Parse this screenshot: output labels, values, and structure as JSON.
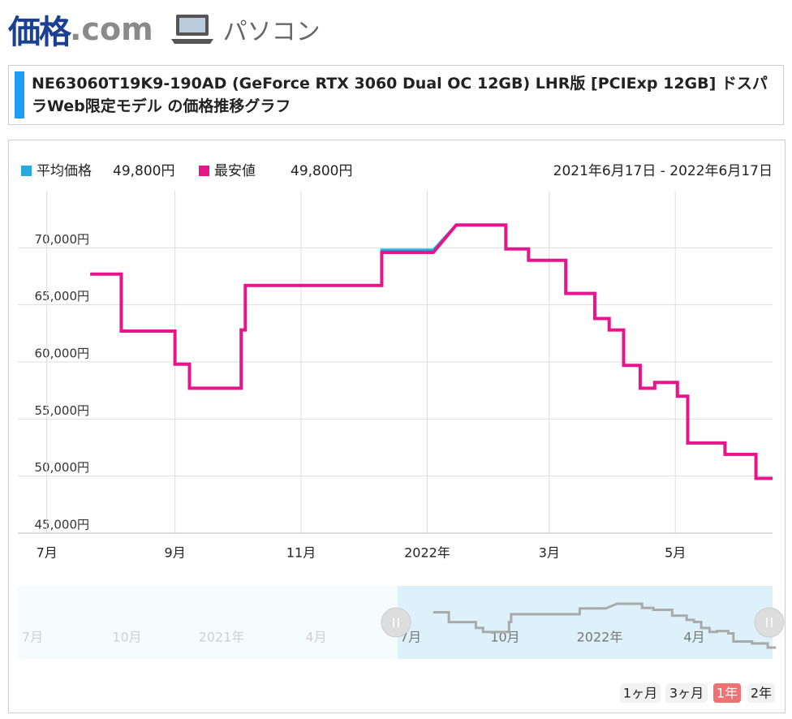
{
  "header": {
    "logo_main": "価格",
    "logo_domain": ".com",
    "section": "パソコン"
  },
  "title": "NE63060T19K9-190AD (GeForce RTX 3060 Dual OC 12GB) LHR版 [PCIExp 12GB] ドスパラWeb限定モデル の価格推移グラフ",
  "chart_data": {
    "type": "line",
    "date_range": "2021年6月17日 - 2022年6月17日",
    "x": [
      "2021-07-22",
      "2021-08-06",
      "2021-08-06",
      "2021-09-01",
      "2021-09-01",
      "2021-09-08",
      "2021-09-08",
      "2021-10-03",
      "2021-10-03",
      "2021-10-05",
      "2021-10-05",
      "2021-12-10",
      "2021-12-10",
      "2022-01-04",
      "2022-01-15",
      "2022-02-08",
      "2022-02-08",
      "2022-02-19",
      "2022-02-19",
      "2022-03-09",
      "2022-03-09",
      "2022-03-23",
      "2022-03-23",
      "2022-03-30",
      "2022-03-30",
      "2022-04-06",
      "2022-04-06",
      "2022-04-14",
      "2022-04-14",
      "2022-04-21",
      "2022-04-21",
      "2022-05-02",
      "2022-05-02",
      "2022-05-07",
      "2022-05-07",
      "2022-05-25",
      "2022-05-25",
      "2022-06-09",
      "2022-06-09",
      "2022-06-17"
    ],
    "series": [
      {
        "name": "平均価格",
        "current_label": "49,800円",
        "color": "#29a8e0",
        "values": [
          67700,
          67700,
          62700,
          62700,
          59800,
          59800,
          57700,
          57700,
          62800,
          62800,
          66700,
          66700,
          69800,
          69800,
          72000,
          72000,
          69900,
          69900,
          68900,
          68900,
          66000,
          66000,
          63800,
          63800,
          62800,
          62800,
          59700,
          59700,
          57700,
          57700,
          58200,
          58200,
          57000,
          57000,
          52900,
          52900,
          51900,
          51900,
          49800,
          49800
        ]
      },
      {
        "name": "最安値",
        "current_label": "49,800円",
        "color": "#e8148c",
        "values": [
          67700,
          67700,
          62700,
          62700,
          59800,
          59800,
          57700,
          57700,
          62800,
          62800,
          66700,
          66700,
          69600,
          69600,
          72000,
          72000,
          69900,
          69900,
          68900,
          68900,
          66000,
          66000,
          63800,
          63800,
          62800,
          62800,
          59700,
          59700,
          57700,
          57700,
          58200,
          58200,
          57000,
          57000,
          52900,
          52900,
          51900,
          51900,
          49800,
          49800
        ]
      }
    ],
    "xlim": [
      "2021-06-17",
      "2022-06-17"
    ],
    "xticks": [
      {
        "value": "2021-07-01",
        "label": "7月"
      },
      {
        "value": "2021-09-01",
        "label": "9月"
      },
      {
        "value": "2021-11-01",
        "label": "11月"
      },
      {
        "value": "2022-01-01",
        "label": "2022年"
      },
      {
        "value": "2022-03-01",
        "label": "3月"
      },
      {
        "value": "2022-05-01",
        "label": "5月"
      }
    ],
    "ylim": [
      45000,
      75000
    ],
    "yticks": [
      {
        "value": 45000,
        "label": "45,000円"
      },
      {
        "value": 50000,
        "label": "50,000円"
      },
      {
        "value": 55000,
        "label": "55,000円"
      },
      {
        "value": 60000,
        "label": "60,000円"
      },
      {
        "value": 65000,
        "label": "65,000円"
      },
      {
        "value": 70000,
        "label": "70,000円"
      }
    ],
    "grid": true,
    "navigator": {
      "labels": [
        "7月",
        "10月",
        "2021年",
        "4月",
        "7月",
        "10月",
        "2022年",
        "4月"
      ]
    },
    "range_buttons": [
      "1ヶ月",
      "3ヶ月",
      "1年",
      "2年"
    ],
    "selected_range": 2
  }
}
